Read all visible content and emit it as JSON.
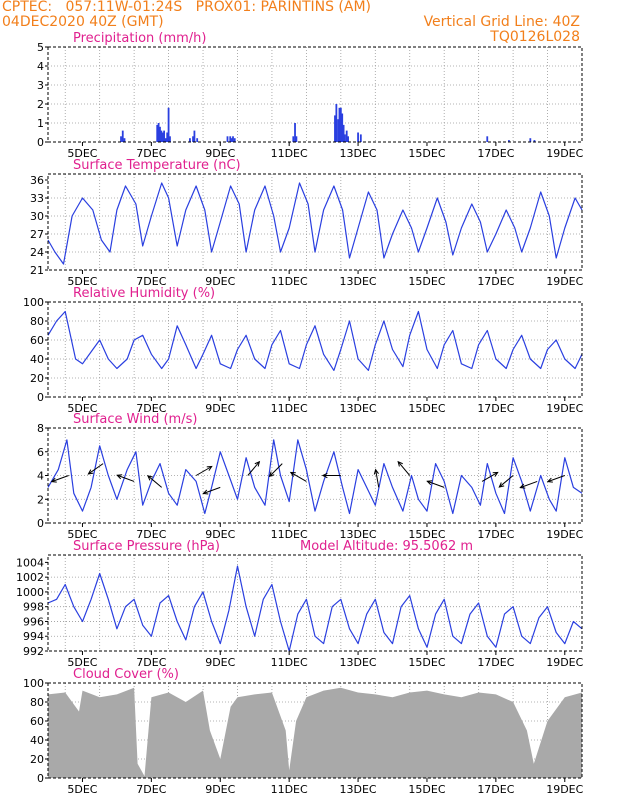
{
  "header": {
    "line1": "CPTEC:   057:11W-01:24S   PROX01: PARINTINS (AM)",
    "line2": "04DEC2020 40Z (GMT)",
    "grid_note": "Vertical Grid Line: 40Z",
    "code": "TQ0126L028"
  },
  "colors": {
    "header": "#f27f1b",
    "title": "#e0208f",
    "line": "#2a3fe0",
    "cloud": "#a9a9a9",
    "grid": "#9a9a9a",
    "arrow": "#000000"
  },
  "chart_data": [
    {
      "id": "precip",
      "type": "bar",
      "title": "Precipitation (mm/h)",
      "xlim": [
        0,
        15.5
      ],
      "ylim": [
        0,
        5
      ],
      "yticks": [
        0,
        1,
        2,
        3,
        4,
        5
      ],
      "xtick_labels": [
        "5DEC",
        "7DEC",
        "9DEC",
        "11DEC",
        "13DEC",
        "15DEC",
        "17DEC",
        "19DEC"
      ],
      "x": [
        2.12,
        2.17,
        2.22,
        3.17,
        3.21,
        3.25,
        3.29,
        3.33,
        3.37,
        3.42,
        3.46,
        3.5,
        3.54,
        4.12,
        4.21,
        4.25,
        4.33,
        5.21,
        5.29,
        5.33,
        5.37,
        5.42,
        7.12,
        7.17,
        7.21,
        8.33,
        8.37,
        8.42,
        8.46,
        8.5,
        8.54,
        8.58,
        8.62,
        8.67,
        8.71,
        9.0,
        9.08,
        12.75,
        13.38,
        14.0,
        14.12
      ],
      "values": [
        0.3,
        0.6,
        0.2,
        0.9,
        1.0,
        0.8,
        0.6,
        0.5,
        0.6,
        0.2,
        0.5,
        1.8,
        0.3,
        0.2,
        0.3,
        0.6,
        0.2,
        0.3,
        0.3,
        0.2,
        0.3,
        0.2,
        0.3,
        1.0,
        0.3,
        1.4,
        2.0,
        1.2,
        1.8,
        1.8,
        1.5,
        0.9,
        0.4,
        0.6,
        0.3,
        0.5,
        0.4,
        0.3,
        0.1,
        0.2,
        0.1
      ]
    },
    {
      "id": "temp",
      "type": "line",
      "title": "Surface Temperature (nC)",
      "xlim": [
        0,
        15.5
      ],
      "ylim": [
        21,
        37
      ],
      "yticks": [
        21,
        24,
        27,
        30,
        33,
        36
      ],
      "xtick_labels": [
        "5DEC",
        "7DEC",
        "9DEC",
        "11DEC",
        "13DEC",
        "15DEC",
        "17DEC",
        "19DEC"
      ],
      "x": [
        0,
        0.2,
        0.45,
        0.7,
        1.0,
        1.3,
        1.55,
        1.8,
        2.0,
        2.25,
        2.55,
        2.75,
        3.0,
        3.3,
        3.5,
        3.75,
        4.0,
        4.3,
        4.55,
        4.75,
        5.0,
        5.3,
        5.55,
        5.75,
        6.0,
        6.3,
        6.55,
        6.75,
        7.0,
        7.3,
        7.55,
        7.75,
        8.0,
        8.3,
        8.55,
        8.75,
        9.0,
        9.3,
        9.55,
        9.75,
        10.0,
        10.3,
        10.55,
        10.75,
        11.0,
        11.3,
        11.55,
        11.75,
        12.0,
        12.3,
        12.55,
        12.75,
        13.0,
        13.3,
        13.55,
        13.75,
        14.0,
        14.3,
        14.55,
        14.75,
        15.0,
        15.3,
        15.5
      ],
      "values": [
        26,
        24,
        22,
        30,
        33,
        31,
        26,
        24,
        31,
        35,
        32,
        25,
        30,
        35.5,
        33,
        25,
        31,
        35,
        31,
        24,
        29,
        35,
        32,
        24,
        31,
        35,
        30,
        24,
        28,
        35.5,
        32,
        24,
        31,
        35,
        31,
        23,
        28,
        34,
        31,
        23,
        27,
        31,
        28,
        24,
        28,
        33,
        29,
        23.5,
        28,
        32,
        29,
        24,
        27,
        31,
        28,
        24,
        28,
        34,
        30,
        23,
        28,
        33,
        31
      ]
    },
    {
      "id": "rh",
      "type": "line",
      "title": "Relative Humidity (%)",
      "xlim": [
        0,
        15.5
      ],
      "ylim": [
        0,
        100
      ],
      "yticks": [
        0,
        20,
        40,
        60,
        80,
        100
      ],
      "xtick_labels": [
        "5DEC",
        "7DEC",
        "9DEC",
        "11DEC",
        "13DEC",
        "15DEC",
        "17DEC",
        "19DEC"
      ],
      "x": [
        0,
        0.25,
        0.5,
        0.8,
        1.0,
        1.3,
        1.5,
        1.75,
        2.0,
        2.3,
        2.5,
        2.75,
        3.0,
        3.3,
        3.5,
        3.75,
        4.0,
        4.3,
        4.5,
        4.75,
        5.0,
        5.3,
        5.5,
        5.75,
        6.0,
        6.3,
        6.5,
        6.75,
        7.0,
        7.3,
        7.5,
        7.75,
        8.0,
        8.3,
        8.5,
        8.75,
        9.0,
        9.3,
        9.5,
        9.75,
        10.0,
        10.3,
        10.5,
        10.75,
        11.0,
        11.3,
        11.5,
        11.75,
        12.0,
        12.3,
        12.5,
        12.75,
        13.0,
        13.3,
        13.5,
        13.75,
        14.0,
        14.3,
        14.5,
        14.75,
        15.0,
        15.3,
        15.5
      ],
      "values": [
        65,
        80,
        90,
        40,
        35,
        50,
        60,
        40,
        30,
        40,
        60,
        65,
        45,
        30,
        40,
        75,
        55,
        30,
        45,
        65,
        35,
        30,
        50,
        65,
        40,
        30,
        55,
        70,
        35,
        30,
        55,
        75,
        45,
        28,
        50,
        80,
        40,
        28,
        55,
        80,
        50,
        32,
        65,
        90,
        50,
        30,
        55,
        70,
        35,
        30,
        55,
        70,
        40,
        30,
        50,
        65,
        40,
        30,
        50,
        60,
        40,
        30,
        45
      ]
    },
    {
      "id": "wind",
      "type": "line",
      "title": "Surface Wind (m/s)",
      "xlim": [
        0,
        15.5
      ],
      "ylim": [
        0,
        8
      ],
      "yticks": [
        0,
        2,
        4,
        6,
        8
      ],
      "xtick_labels": [
        "5DEC",
        "7DEC",
        "9DEC",
        "11DEC",
        "13DEC",
        "15DEC",
        "17DEC",
        "19DEC"
      ],
      "x": [
        0,
        0.3,
        0.55,
        0.75,
        1.0,
        1.25,
        1.5,
        1.75,
        2.0,
        2.3,
        2.55,
        2.75,
        3.0,
        3.25,
        3.5,
        3.75,
        4.0,
        4.3,
        4.55,
        4.75,
        5.0,
        5.25,
        5.5,
        5.75,
        6.0,
        6.3,
        6.55,
        6.75,
        7.0,
        7.25,
        7.5,
        7.75,
        8.0,
        8.3,
        8.55,
        8.75,
        9.0,
        9.25,
        9.5,
        9.75,
        10.0,
        10.3,
        10.55,
        10.75,
        11.0,
        11.25,
        11.5,
        11.75,
        12.0,
        12.3,
        12.55,
        12.75,
        13.0,
        13.25,
        13.5,
        13.75,
        14.0,
        14.3,
        14.55,
        14.75,
        15.0,
        15.25,
        15.5
      ],
      "values": [
        3.0,
        4.5,
        7.0,
        2.5,
        1.0,
        3.0,
        6.5,
        4.0,
        2.0,
        4.5,
        6.0,
        1.5,
        3.5,
        5.0,
        2.5,
        1.5,
        4.5,
        3.5,
        0.8,
        3.0,
        6.0,
        4.0,
        2.0,
        5.5,
        3.0,
        1.5,
        7.0,
        4.0,
        1.8,
        7.0,
        4.5,
        1.0,
        3.5,
        6.0,
        3.0,
        0.8,
        4.5,
        3.0,
        1.5,
        5.0,
        3.0,
        1.0,
        4.0,
        2.0,
        1.0,
        5.0,
        3.5,
        0.8,
        4.0,
        3.0,
        1.5,
        5.0,
        2.5,
        0.8,
        5.5,
        3.5,
        1.0,
        4.0,
        2.0,
        1.0,
        5.5,
        3.0,
        2.5
      ],
      "arrows": [
        {
          "x": 0.6,
          "s": 4.0,
          "dir": 200
        },
        {
          "x": 1.6,
          "s": 5.0,
          "dir": 215
        },
        {
          "x": 2.5,
          "s": 3.5,
          "dir": 160
        },
        {
          "x": 3.3,
          "s": 3.0,
          "dir": 140
        },
        {
          "x": 4.3,
          "s": 4.0,
          "dir": 30
        },
        {
          "x": 5.0,
          "s": 3.0,
          "dir": 200
        },
        {
          "x": 5.8,
          "s": 4.0,
          "dir": 50
        },
        {
          "x": 6.8,
          "s": 5.0,
          "dir": 225
        },
        {
          "x": 7.5,
          "s": 3.5,
          "dir": 150
        },
        {
          "x": 8.5,
          "s": 4.0,
          "dir": 180
        },
        {
          "x": 9.6,
          "s": 3.0,
          "dir": 100
        },
        {
          "x": 10.5,
          "s": 4.0,
          "dir": 130
        },
        {
          "x": 11.5,
          "s": 3.0,
          "dir": 160
        },
        {
          "x": 12.6,
          "s": 3.5,
          "dir": 30
        },
        {
          "x": 13.5,
          "s": 4.0,
          "dir": 220
        },
        {
          "x": 14.2,
          "s": 3.5,
          "dir": 200
        },
        {
          "x": 15.0,
          "s": 4.0,
          "dir": 200
        }
      ]
    },
    {
      "id": "press",
      "type": "line",
      "title": "Surface Pressure (hPa)",
      "subtitle": "Model Altitude: 95.5062 m",
      "xlim": [
        0,
        15.5
      ],
      "ylim": [
        992,
        1005
      ],
      "yticks": [
        992,
        994,
        996,
        998,
        1000,
        1002,
        1004
      ],
      "xtick_labels": [
        "5DEC",
        "7DEC",
        "9DEC",
        "11DEC",
        "13DEC",
        "15DEC",
        "17DEC",
        "19DEC"
      ],
      "x": [
        0,
        0.25,
        0.5,
        0.75,
        1.0,
        1.25,
        1.5,
        1.75,
        2.0,
        2.25,
        2.5,
        2.75,
        3.0,
        3.25,
        3.5,
        3.75,
        4.0,
        4.25,
        4.5,
        4.75,
        5.0,
        5.25,
        5.5,
        5.75,
        6.0,
        6.25,
        6.5,
        6.75,
        7.0,
        7.25,
        7.5,
        7.75,
        8.0,
        8.25,
        8.5,
        8.75,
        9.0,
        9.25,
        9.5,
        9.75,
        10.0,
        10.25,
        10.5,
        10.75,
        11.0,
        11.25,
        11.5,
        11.75,
        12.0,
        12.25,
        12.5,
        12.75,
        13.0,
        13.25,
        13.5,
        13.75,
        14.0,
        14.25,
        14.5,
        14.75,
        15.0,
        15.25,
        15.5
      ],
      "values": [
        998.5,
        999.0,
        1001.0,
        998.0,
        996.0,
        999.0,
        1002.5,
        999.0,
        995.0,
        998.0,
        999.0,
        995.5,
        994.0,
        998.5,
        999.5,
        996.0,
        993.5,
        998.0,
        1000.0,
        996.0,
        993.0,
        997.5,
        1003.5,
        998.0,
        994.0,
        999.0,
        1001.0,
        996.0,
        992.0,
        997.0,
        999.0,
        994.0,
        993.0,
        998.0,
        999.0,
        995.0,
        993.0,
        997.0,
        999.0,
        994.5,
        993.0,
        998.0,
        999.5,
        995.0,
        992.5,
        997.0,
        999.0,
        994.0,
        993.0,
        997.0,
        998.5,
        994.0,
        992.5,
        997.0,
        998.0,
        994.0,
        993.0,
        996.5,
        998.0,
        994.5,
        993.0,
        996.0,
        995.0
      ]
    },
    {
      "id": "cloud",
      "type": "area",
      "title": "Cloud Cover (%)",
      "xlim": [
        0,
        15.5
      ],
      "ylim": [
        0,
        100
      ],
      "yticks": [
        0,
        20,
        40,
        60,
        80,
        100
      ],
      "xtick_labels": [
        "5DEC",
        "7DEC",
        "9DEC",
        "11DEC",
        "13DEC",
        "15DEC",
        "17DEC",
        "19DEC"
      ],
      "x": [
        0,
        0.5,
        0.9,
        1.0,
        1.5,
        2.0,
        2.5,
        2.6,
        2.8,
        3.0,
        3.5,
        4.0,
        4.5,
        4.7,
        5.0,
        5.3,
        5.5,
        6.0,
        6.5,
        6.9,
        7.0,
        7.2,
        7.5,
        8.0,
        8.5,
        9.0,
        9.5,
        10.0,
        10.5,
        11.0,
        11.5,
        12.0,
        12.5,
        13.0,
        13.5,
        13.9,
        14.1,
        14.5,
        15.0,
        15.5
      ],
      "values": [
        88,
        90,
        70,
        92,
        85,
        88,
        95,
        15,
        2,
        85,
        90,
        80,
        92,
        50,
        20,
        75,
        85,
        88,
        90,
        50,
        8,
        60,
        85,
        92,
        95,
        90,
        88,
        85,
        90,
        92,
        88,
        85,
        90,
        88,
        80,
        50,
        15,
        60,
        85,
        90
      ]
    }
  ]
}
